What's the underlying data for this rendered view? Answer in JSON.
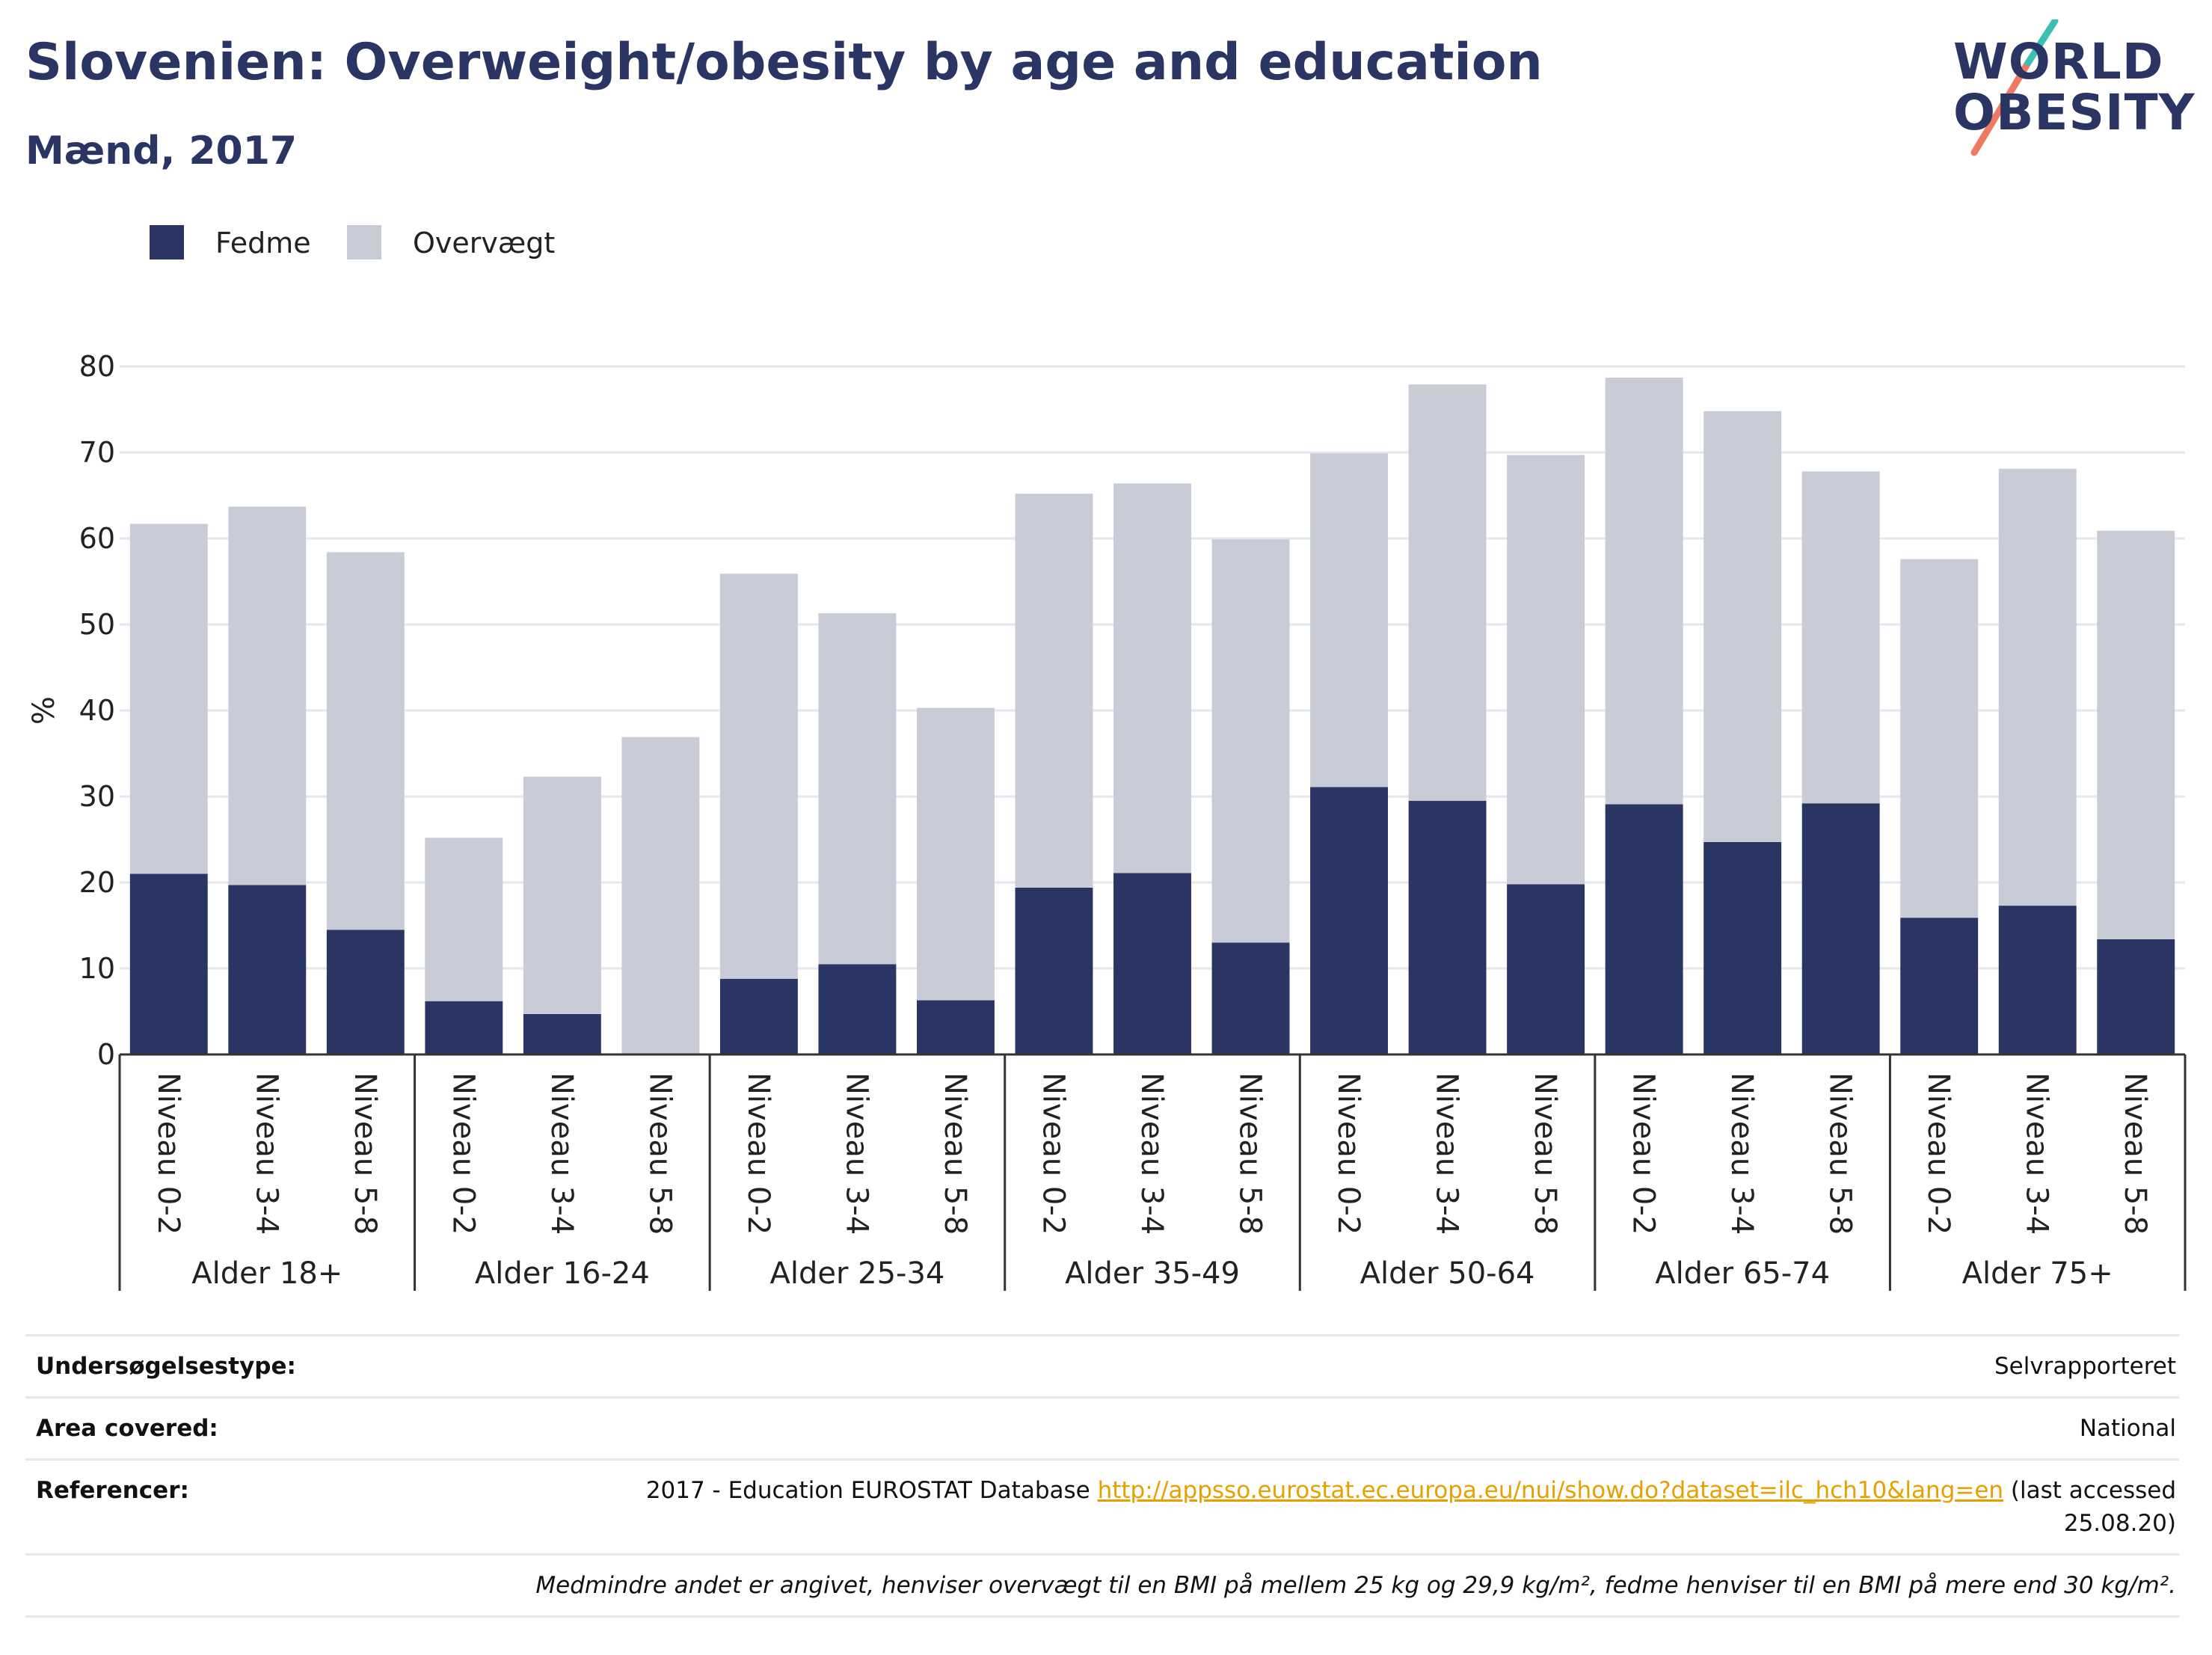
{
  "header": {
    "title": "Slovenien: Overweight/obesity by age and education",
    "subtitle": "Mænd, 2017"
  },
  "logo": {
    "line1": "WORLD",
    "line2": "OBESITY"
  },
  "colors": {
    "fedme": "#2a3563",
    "overvaegt": "#c9cbd7",
    "text": "#2a3563",
    "link": "#e6a100"
  },
  "chart_data": {
    "type": "bar",
    "stacked": true,
    "ylabel": "%",
    "ylim": [
      0,
      80
    ],
    "yticks": [
      0,
      10,
      20,
      30,
      40,
      50,
      60,
      70,
      80
    ],
    "grid": true,
    "legend_position": "top-left",
    "categories": [
      "Niveau 0-2",
      "Niveau 3-4",
      "Niveau 5-8",
      "Niveau 0-2",
      "Niveau 3-4",
      "Niveau 5-8",
      "Niveau 0-2",
      "Niveau 3-4",
      "Niveau 5-8",
      "Niveau 0-2",
      "Niveau 3-4",
      "Niveau 5-8",
      "Niveau 0-2",
      "Niveau 3-4",
      "Niveau 5-8",
      "Niveau 0-2",
      "Niveau 3-4",
      "Niveau 5-8",
      "Niveau 0-2",
      "Niveau 3-4",
      "Niveau 5-8"
    ],
    "groups": [
      {
        "label": "Alder 18+",
        "size": 3
      },
      {
        "label": "Alder 16-24",
        "size": 3
      },
      {
        "label": "Alder 25-34",
        "size": 3
      },
      {
        "label": "Alder 35-49",
        "size": 3
      },
      {
        "label": "Alder 50-64",
        "size": 3
      },
      {
        "label": "Alder 65-74",
        "size": 3
      },
      {
        "label": "Alder 75+",
        "size": 3
      }
    ],
    "series": [
      {
        "name": "Fedme",
        "values": [
          21.0,
          19.7,
          14.5,
          6.2,
          4.7,
          0.0,
          8.8,
          10.5,
          6.3,
          19.4,
          21.1,
          13.0,
          31.1,
          29.5,
          19.8,
          29.1,
          24.7,
          29.2,
          15.9,
          17.3,
          13.4
        ]
      },
      {
        "name": "Overvægt",
        "values": [
          40.7,
          44.0,
          43.9,
          19.0,
          27.6,
          36.9,
          47.1,
          40.8,
          34.0,
          45.8,
          45.3,
          46.9,
          38.8,
          48.4,
          49.9,
          49.6,
          50.1,
          38.6,
          41.7,
          50.8,
          47.5
        ]
      }
    ]
  },
  "info": {
    "survey_type_label": "Undersøgelsestype:",
    "survey_type_value": "Selvrapporteret",
    "area_label": "Area covered:",
    "area_value": "National",
    "references_label": "Referencer:",
    "references_prefix": "2017 - Education EUROSTAT Database",
    "references_link": "http://appsso.eurostat.ec.europa.eu/nui/show.do?dataset=ilc_hch10&lang=en",
    "references_suffix": "(last accessed",
    "references_date": "25.08.20)",
    "footnote": "Medmindre andet er angivet, henviser overvægt til en BMI på mellem 25 kg og 29,9 kg/m², fedme henviser til en BMI på mere end 30 kg/m²."
  }
}
